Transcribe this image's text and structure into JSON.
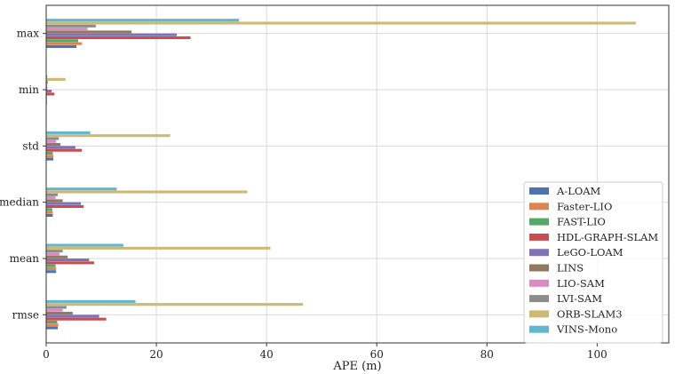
{
  "chart_data": {
    "type": "bar",
    "orientation": "horizontal",
    "categories": [
      "max",
      "min",
      "std",
      "median",
      "mean",
      "rmse"
    ],
    "xlabel": "APE (m)",
    "ylabel": "",
    "xlim": [
      0,
      113
    ],
    "xticks": [
      0,
      20,
      40,
      60,
      80,
      100
    ],
    "grid": true,
    "legend_position": "lower-right",
    "series": [
      {
        "name": "A-LOAM",
        "color": "#4c72b0",
        "values": [
          5.5,
          0.1,
          1.3,
          1.2,
          1.8,
          2.1
        ]
      },
      {
        "name": "Faster-LIO",
        "color": "#dd8452",
        "values": [
          6.5,
          0.1,
          1.3,
          1.2,
          1.8,
          2.2
        ]
      },
      {
        "name": "FAST-LIO",
        "color": "#55a868",
        "values": [
          5.8,
          0.1,
          1.2,
          1.1,
          1.7,
          2.0
        ]
      },
      {
        "name": "HDL-GRAPH-SLAM",
        "color": "#c44e52",
        "values": [
          26.2,
          1.5,
          6.5,
          6.8,
          8.7,
          10.9
        ]
      },
      {
        "name": "LeGO-LOAM",
        "color": "#8172b3",
        "values": [
          23.7,
          1.0,
          5.3,
          6.3,
          7.8,
          9.6
        ]
      },
      {
        "name": "LINS",
        "color": "#937860",
        "values": [
          15.5,
          0.2,
          2.6,
          3.0,
          3.9,
          4.8
        ]
      },
      {
        "name": "LIO-SAM",
        "color": "#da8bc3",
        "values": [
          7.5,
          0.2,
          1.8,
          1.7,
          2.4,
          3.0
        ]
      },
      {
        "name": "LVI-SAM",
        "color": "#8c8c8c",
        "values": [
          9.0,
          0.3,
          2.3,
          2.1,
          3.0,
          3.7
        ]
      },
      {
        "name": "ORB-SLAM3",
        "color": "#ccb974",
        "values": [
          107.0,
          3.5,
          22.5,
          36.5,
          40.7,
          46.6
        ]
      },
      {
        "name": "VINS-Mono",
        "color": "#64b5cd",
        "values": [
          35.0,
          0.2,
          8.0,
          12.8,
          14.0,
          16.2
        ]
      }
    ]
  }
}
